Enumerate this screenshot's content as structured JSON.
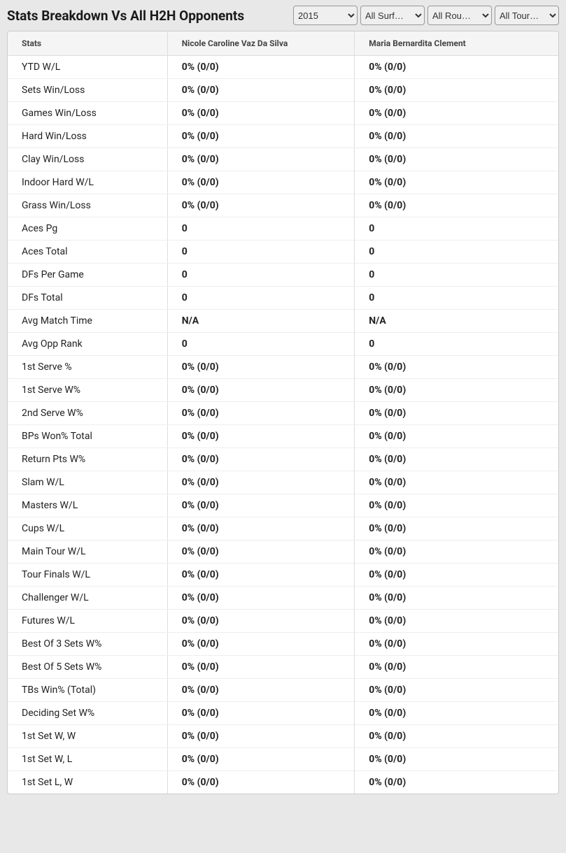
{
  "header": {
    "title": "Stats Breakdown Vs All H2H Opponents"
  },
  "filters": {
    "year": {
      "selected": "2015",
      "options": [
        "2015"
      ]
    },
    "surface": {
      "selected": "All Surf…",
      "options": [
        "All Surf…"
      ]
    },
    "round": {
      "selected": "All Rou…",
      "options": [
        "All Rou…"
      ]
    },
    "tour": {
      "selected": "All Tour…",
      "options": [
        "All Tour…"
      ]
    }
  },
  "table": {
    "headers": {
      "stats": "Stats",
      "player1": "Nicole Caroline Vaz Da Silva",
      "player2": "Maria Bernardita Clement"
    },
    "rows": [
      {
        "label": "YTD W/L",
        "p1": "0% (0/0)",
        "p2": "0% (0/0)"
      },
      {
        "label": "Sets Win/Loss",
        "p1": "0% (0/0)",
        "p2": "0% (0/0)"
      },
      {
        "label": "Games Win/Loss",
        "p1": "0% (0/0)",
        "p2": "0% (0/0)"
      },
      {
        "label": "Hard Win/Loss",
        "p1": "0% (0/0)",
        "p2": "0% (0/0)"
      },
      {
        "label": "Clay Win/Loss",
        "p1": "0% (0/0)",
        "p2": "0% (0/0)"
      },
      {
        "label": "Indoor Hard W/L",
        "p1": "0% (0/0)",
        "p2": "0% (0/0)"
      },
      {
        "label": "Grass Win/Loss",
        "p1": "0% (0/0)",
        "p2": "0% (0/0)"
      },
      {
        "label": "Aces Pg",
        "p1": "0",
        "p2": "0"
      },
      {
        "label": "Aces Total",
        "p1": "0",
        "p2": "0"
      },
      {
        "label": "DFs Per Game",
        "p1": "0",
        "p2": "0"
      },
      {
        "label": "DFs Total",
        "p1": "0",
        "p2": "0"
      },
      {
        "label": "Avg Match Time",
        "p1": "N/A",
        "p2": "N/A"
      },
      {
        "label": "Avg Opp Rank",
        "p1": "0",
        "p2": "0"
      },
      {
        "label": "1st Serve %",
        "p1": "0% (0/0)",
        "p2": "0% (0/0)"
      },
      {
        "label": "1st Serve W%",
        "p1": "0% (0/0)",
        "p2": "0% (0/0)"
      },
      {
        "label": "2nd Serve W%",
        "p1": "0% (0/0)",
        "p2": "0% (0/0)"
      },
      {
        "label": "BPs Won% Total",
        "p1": "0% (0/0)",
        "p2": "0% (0/0)"
      },
      {
        "label": "Return Pts W%",
        "p1": "0% (0/0)",
        "p2": "0% (0/0)"
      },
      {
        "label": "Slam W/L",
        "p1": "0% (0/0)",
        "p2": "0% (0/0)"
      },
      {
        "label": "Masters W/L",
        "p1": "0% (0/0)",
        "p2": "0% (0/0)"
      },
      {
        "label": "Cups W/L",
        "p1": "0% (0/0)",
        "p2": "0% (0/0)"
      },
      {
        "label": "Main Tour W/L",
        "p1": "0% (0/0)",
        "p2": "0% (0/0)"
      },
      {
        "label": "Tour Finals W/L",
        "p1": "0% (0/0)",
        "p2": "0% (0/0)"
      },
      {
        "label": "Challenger W/L",
        "p1": "0% (0/0)",
        "p2": "0% (0/0)"
      },
      {
        "label": "Futures W/L",
        "p1": "0% (0/0)",
        "p2": "0% (0/0)"
      },
      {
        "label": "Best Of 3 Sets W%",
        "p1": "0% (0/0)",
        "p2": "0% (0/0)"
      },
      {
        "label": "Best Of 5 Sets W%",
        "p1": "0% (0/0)",
        "p2": "0% (0/0)"
      },
      {
        "label": "TBs Win% (Total)",
        "p1": "0% (0/0)",
        "p2": "0% (0/0)"
      },
      {
        "label": "Deciding Set W%",
        "p1": "0% (0/0)",
        "p2": "0% (0/0)"
      },
      {
        "label": "1st Set W, W",
        "p1": "0% (0/0)",
        "p2": "0% (0/0)"
      },
      {
        "label": "1st Set W, L",
        "p1": "0% (0/0)",
        "p2": "0% (0/0)"
      },
      {
        "label": "1st Set L, W",
        "p1": "0% (0/0)",
        "p2": "0% (0/0)"
      }
    ]
  }
}
